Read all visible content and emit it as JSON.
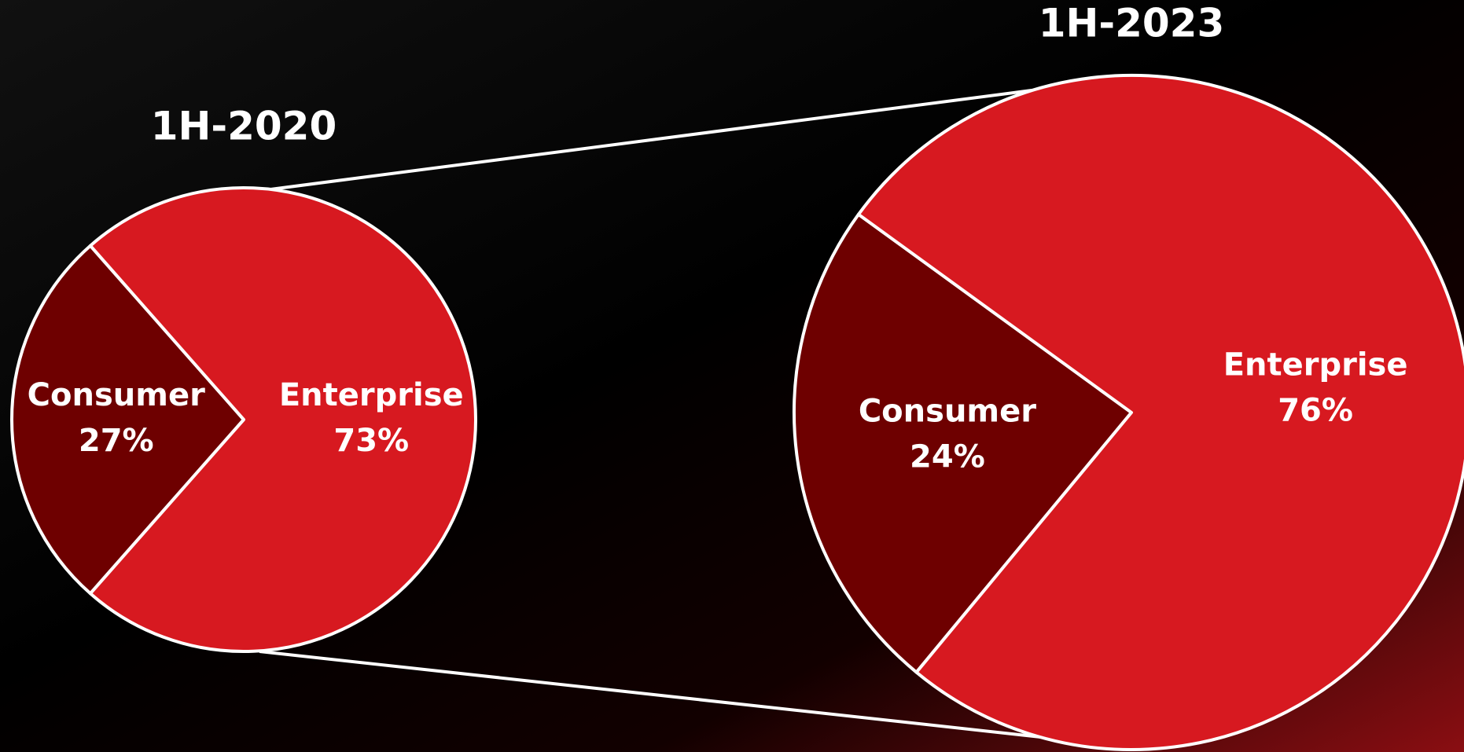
{
  "chart_data": [
    {
      "type": "pie",
      "title": "1H-2020",
      "categories": [
        "Consumer",
        "Enterprise"
      ],
      "values": [
        27,
        73
      ],
      "value_labels": [
        "27%",
        "73%"
      ],
      "colors": [
        "#6e0000",
        "#d71920"
      ]
    },
    {
      "type": "pie",
      "title": "1H-2023",
      "categories": [
        "Consumer",
        "Enterprise"
      ],
      "values": [
        24,
        76
      ],
      "value_labels": [
        "24%",
        "76%"
      ],
      "colors": [
        "#6e0000",
        "#d71920"
      ]
    }
  ]
}
